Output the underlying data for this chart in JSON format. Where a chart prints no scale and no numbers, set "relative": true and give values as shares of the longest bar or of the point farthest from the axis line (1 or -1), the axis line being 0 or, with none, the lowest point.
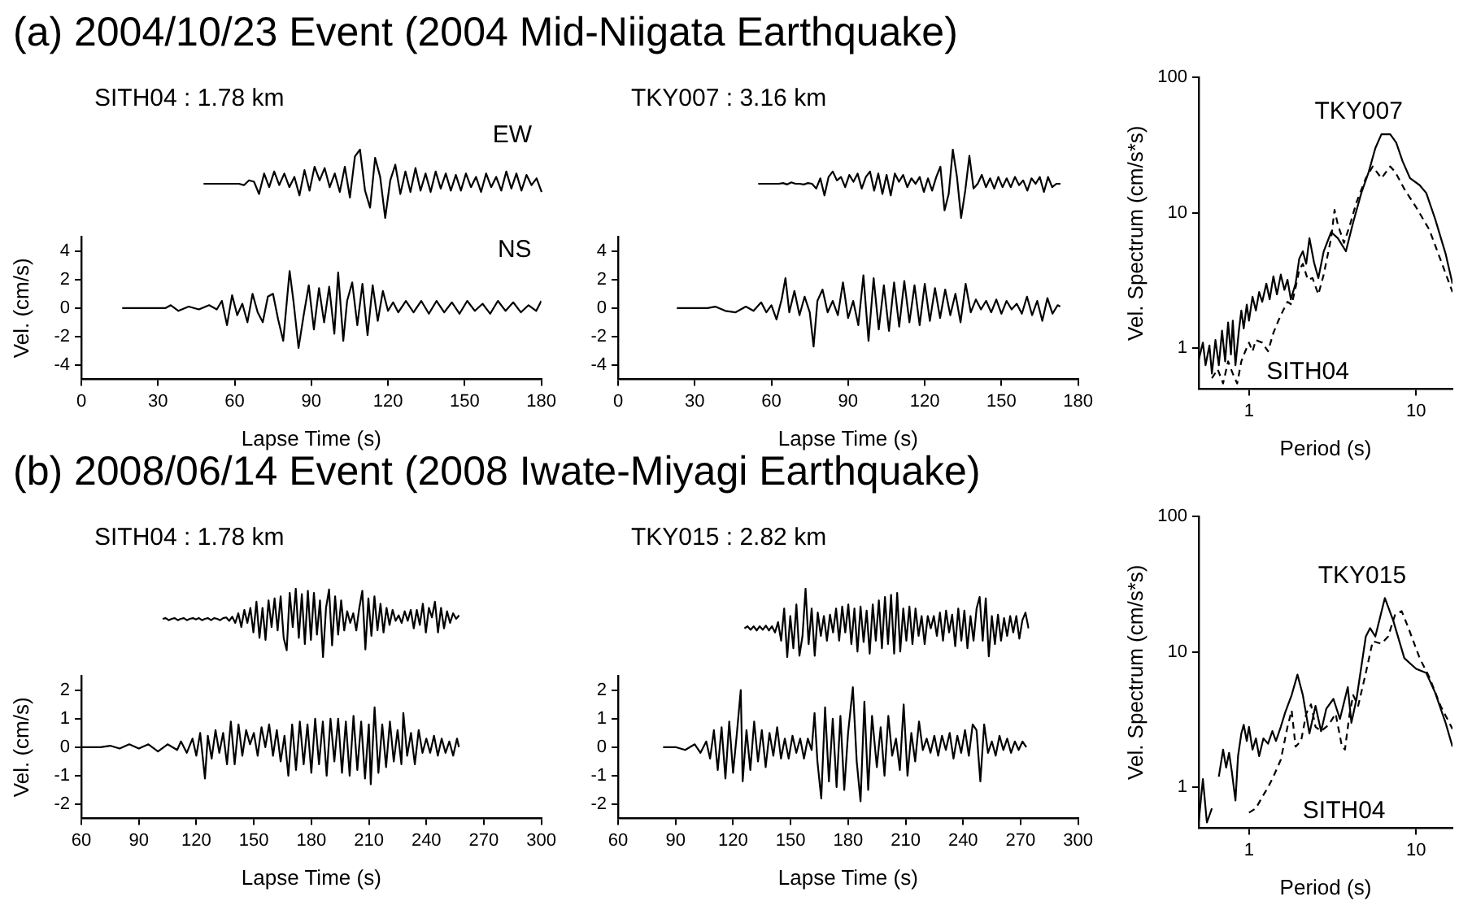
{
  "chart_data": [
    {
      "type": "line",
      "title": "(a) 2004/10/23 Event (2004 Mid-Niigata Earthquake)",
      "subtitle": "SITH04 : 1.78 km",
      "relative": true,
      "categories": [
        null,
        null,
        null,
        null,
        null,
        null,
        null,
        null,
        null,
        null,
        null,
        null,
        null,
        null,
        null,
        null,
        null,
        null,
        null,
        null,
        null,
        null,
        null,
        null,
        null,
        null,
        null,
        null,
        null,
        null,
        null,
        null,
        null,
        null,
        null,
        null,
        null,
        null,
        null,
        null,
        null,
        null,
        null,
        null,
        null,
        null,
        null,
        null,
        null,
        null,
        null,
        null,
        null,
        null,
        null,
        null,
        null,
        null,
        null,
        null,
        null,
        null,
        null,
        null,
        null,
        null,
        null,
        null
      ],
      "series": [
        {
          "name": "EW",
          "color": "#000000",
          "values": [
            0.5,
            0.5,
            0.5,
            0.5,
            0.5,
            0.5,
            0.5,
            0.5,
            0.48,
            0.55,
            0.53,
            0.35,
            0.65,
            0.45,
            0.68,
            0.48,
            0.65,
            0.45,
            0.6,
            0.33,
            0.7,
            0.4,
            0.75,
            0.55,
            0.73,
            0.45,
            0.65,
            0.38,
            0.75,
            0.3,
            0.9,
            1,
            0.4,
            0.15,
            0.88,
            0.6,
            0,
            0.55,
            0.78,
            0.35,
            0.68,
            0.38,
            0.73,
            0.4,
            0.65,
            0.38,
            0.68,
            0.43,
            0.65,
            0.4,
            0.63,
            0.4,
            0.65,
            0.45,
            0.6,
            0.38,
            0.65,
            0.45,
            0.6,
            0.4,
            0.68,
            0.43,
            0.65,
            0.4,
            0.63,
            0.48,
            0.58,
            0.38
          ]
        }
      ]
    },
    {
      "type": "line",
      "xlabel": "Lapse Time (s)",
      "ylabel": "Vel. (cm/s)",
      "xlim": [
        0,
        180
      ],
      "xticks": [
        0,
        30,
        60,
        90,
        120,
        150,
        180
      ],
      "ylim": [
        -5,
        5
      ],
      "yticks": [
        -4,
        -2,
        0,
        2,
        4
      ],
      "x": [
        16,
        33,
        35,
        38,
        42,
        46,
        50,
        53,
        55,
        57,
        59,
        61,
        63,
        65,
        67,
        69,
        71,
        73,
        75,
        77,
        79,
        81.5,
        83,
        85,
        87,
        89,
        91,
        93,
        95,
        97,
        99,
        100.5,
        102.5,
        104,
        106,
        108,
        110,
        112,
        114,
        116,
        118,
        120,
        122,
        124,
        127,
        130,
        133,
        136,
        139,
        142,
        145,
        148,
        151,
        154,
        157,
        160,
        163,
        166,
        169,
        172,
        175,
        178,
        180
      ],
      "series": [
        {
          "name": "NS",
          "color": "#000000",
          "values": [
            0,
            0,
            0.2,
            -0.2,
            0.1,
            -0.1,
            0.2,
            -0.1,
            0.5,
            -1.2,
            0.9,
            -0.5,
            0.3,
            -1.0,
            1.0,
            -0.3,
            -1.0,
            0.8,
            1.0,
            -0.8,
            -2.3,
            2.6,
            0.5,
            -2.8,
            -0.5,
            1.6,
            -1.5,
            1.4,
            -1.0,
            1.5,
            -1.8,
            2.5,
            -2.3,
            0.5,
            1.8,
            -1.2,
            1.7,
            -1.9,
            1.6,
            -0.9,
            1.2,
            -0.2,
            0.4,
            -0.3,
            0.5,
            -0.3,
            0.5,
            -0.4,
            0.5,
            -0.3,
            0.4,
            -0.4,
            0.5,
            -0.2,
            0.3,
            -0.4,
            0.5,
            -0.2,
            0.4,
            -0.3,
            0.2,
            -0.2,
            0.5
          ]
        }
      ]
    },
    {
      "type": "line",
      "subtitle": "TKY007 : 3.16 km",
      "relative": true,
      "categories": [
        null,
        null,
        null,
        null,
        null,
        null,
        null,
        null,
        null,
        null,
        null,
        null,
        null,
        null,
        null,
        null,
        null,
        null,
        null,
        null,
        null,
        null,
        null,
        null,
        null,
        null,
        null,
        null,
        null,
        null,
        null,
        null,
        null,
        null,
        null,
        null,
        null,
        null,
        null,
        null,
        null,
        null,
        null,
        null,
        null,
        null,
        null,
        null,
        null,
        null,
        null,
        null,
        null,
        null,
        null,
        null,
        null,
        null,
        null,
        null,
        null,
        null,
        null,
        null,
        null,
        null,
        null,
        null,
        null,
        null,
        null,
        null,
        null,
        null
      ],
      "series": [
        {
          "color": "#000000",
          "values": [
            0.5,
            0.5,
            0.5,
            0.5,
            0.5,
            0.5,
            0.51,
            0.49,
            0.52,
            0.5,
            0.5,
            0.49,
            0.51,
            0.5,
            0.43,
            0.58,
            0.33,
            0.6,
            0.68,
            0.55,
            0.6,
            0.45,
            0.63,
            0.53,
            0.65,
            0.43,
            0.6,
            0.68,
            0.4,
            0.65,
            0.35,
            0.63,
            0.33,
            0.65,
            0.53,
            0.63,
            0.45,
            0.58,
            0.5,
            0.6,
            0.38,
            0.58,
            0.4,
            0.6,
            0.75,
            0.11,
            0.35,
            1,
            0.6,
            0,
            0.4,
            0.91,
            0.43,
            0.5,
            0.63,
            0.45,
            0.58,
            0.43,
            0.6,
            0.45,
            0.58,
            0.45,
            0.6,
            0.48,
            0.55,
            0.4,
            0.58,
            0.5,
            0.6,
            0.38,
            0.6,
            0.45,
            0.5,
            0.5
          ]
        }
      ]
    },
    {
      "type": "line",
      "xlabel": "Lapse Time (s)",
      "xlim": [
        0,
        180
      ],
      "xticks": [
        0,
        30,
        60,
        90,
        120,
        150,
        180
      ],
      "ylim": [
        -5,
        5
      ],
      "yticks": [
        -4,
        -2,
        0,
        2,
        4
      ],
      "x": [
        23,
        35,
        38,
        42,
        46,
        50,
        53,
        56,
        58,
        60,
        62,
        64,
        65.5,
        67,
        69,
        71,
        73,
        75,
        76.5,
        78,
        80,
        82,
        84,
        86,
        88,
        90,
        92,
        94,
        96,
        98,
        100,
        102,
        104,
        106,
        108,
        110,
        112,
        114,
        116,
        118,
        120,
        122,
        124,
        126,
        128,
        130,
        132,
        134,
        136,
        138,
        140,
        142,
        144,
        146,
        148,
        150,
        152,
        154,
        156,
        158,
        160,
        162,
        164,
        166,
        168,
        170,
        172,
        173
      ],
      "series": [
        {
          "color": "#000000",
          "values": [
            0,
            0,
            0.1,
            -0.2,
            -0.3,
            0.1,
            -0.2,
            0.4,
            -0.3,
            0.2,
            -0.8,
            0.6,
            2.1,
            -0.3,
            1.2,
            -0.5,
            0.8,
            -0.3,
            -2.7,
            0.5,
            1.3,
            -0.3,
            0.5,
            -0.5,
            1.8,
            -0.7,
            0.5,
            -1.2,
            2.3,
            -2.3,
            2.1,
            -1.5,
            1.6,
            -1.6,
            1.8,
            -1.3,
            1.9,
            -1.0,
            1.6,
            -1.2,
            1.7,
            -0.9,
            1.4,
            -0.7,
            1.3,
            -0.5,
            1.0,
            -1.0,
            1.7,
            -0.3,
            0.6,
            -0.1,
            0.5,
            -0.3,
            0.6,
            -0.4,
            0.5,
            -0.1,
            0.3,
            -0.4,
            0.8,
            -0.5,
            0.5,
            -0.9,
            0.7,
            -0.4,
            0.2,
            0.1
          ]
        }
      ]
    },
    {
      "type": "line",
      "log": "xy",
      "xlabel": "Period (s)",
      "ylabel": "Vel. Spectrum (cm/s*s)",
      "xlim": [
        0.5,
        16.5
      ],
      "xticks": [
        1,
        10
      ],
      "ylim": [
        0.5,
        100
      ],
      "yticks": [
        1,
        10,
        100
      ],
      "series": [
        {
          "name": "TKY007",
          "color": "#000000",
          "line_style": "solid",
          "x": [
            0.5,
            0.53,
            0.55,
            0.58,
            0.6,
            0.63,
            0.66,
            0.69,
            0.72,
            0.75,
            0.78,
            0.8,
            0.83,
            0.87,
            0.9,
            0.93,
            0.97,
            1.0,
            1.05,
            1.1,
            1.15,
            1.2,
            1.27,
            1.33,
            1.4,
            1.47,
            1.55,
            1.63,
            1.7,
            1.78,
            1.9,
            2.0,
            2.1,
            2.2,
            2.3,
            2.45,
            2.6,
            2.8,
            3.1,
            3.4,
            3.8,
            4.2,
            4.7,
            5.2,
            5.7,
            6.2,
            7.0,
            7.6,
            8.3,
            9.2,
            10.5,
            11.5,
            13,
            15,
            16.5
          ],
          "values": [
            0.82,
            1.1,
            0.75,
            1.05,
            0.65,
            1.15,
            0.75,
            1.35,
            0.8,
            1.55,
            0.9,
            1.6,
            0.75,
            1.35,
            1.9,
            1.4,
            2.1,
            1.6,
            2.4,
            1.9,
            2.6,
            2.2,
            3.0,
            2.3,
            3.4,
            2.5,
            3.5,
            2.7,
            3.2,
            2.3,
            3.0,
            4.6,
            5.2,
            4.2,
            6.5,
            4.3,
            3.3,
            5.2,
            7.2,
            6.5,
            5.2,
            8.5,
            14,
            20,
            30,
            38,
            38,
            33,
            24,
            18,
            16,
            14,
            9,
            5,
            3
          ]
        },
        {
          "name": "SITH04",
          "color": "#000000",
          "line_style": "dashed",
          "x": [
            0.6,
            0.65,
            0.7,
            0.75,
            0.8,
            0.85,
            0.9,
            0.95,
            1.0,
            1.05,
            1.1,
            1.2,
            1.3,
            1.4,
            1.5,
            1.6,
            1.7,
            1.8,
            1.9,
            2.0,
            2.1,
            2.25,
            2.4,
            2.6,
            2.8,
            3.1,
            3.25,
            3.4,
            3.7,
            4.0,
            4.4,
            5.0,
            5.5,
            6.2,
            7.0,
            7.5,
            8.5,
            10,
            12,
            14,
            16.5
          ],
          "values": [
            0.6,
            0.7,
            0.55,
            0.8,
            0.65,
            0.55,
            0.8,
            0.95,
            1.1,
            0.95,
            1.15,
            1.1,
            0.95,
            1.3,
            1.6,
            1.9,
            2.2,
            2.1,
            2.8,
            3.8,
            4.2,
            3.2,
            3.3,
            2.5,
            3.5,
            6.5,
            10.5,
            8.2,
            6.0,
            8.0,
            12,
            18,
            22,
            18,
            22,
            20,
            15,
            11,
            7.5,
            4.5,
            2.6
          ]
        }
      ]
    },
    {
      "type": "line",
      "title": "(b) 2008/06/14 Event (2008 Iwate-Miyagi Earthquake)",
      "subtitle": "SITH04 : 1.78 km",
      "relative": true,
      "categories": [
        null,
        null,
        null,
        null,
        null,
        null,
        null,
        null,
        null,
        null,
        null,
        null,
        null,
        null,
        null,
        null,
        null,
        null,
        null,
        null,
        null,
        null,
        null,
        null,
        null,
        null,
        null,
        null,
        null,
        null,
        null,
        null,
        null,
        null,
        null,
        null,
        null,
        null,
        null,
        null,
        null,
        null,
        null,
        null,
        null,
        null,
        null,
        null,
        null,
        null,
        null,
        null,
        null,
        null,
        null,
        null,
        null,
        null,
        null,
        null,
        null,
        null,
        null,
        null,
        null,
        null,
        null,
        null,
        null,
        null,
        null,
        null,
        null,
        null,
        null,
        null,
        null,
        null,
        null,
        null,
        null,
        null,
        null,
        null,
        null,
        null,
        null,
        null,
        null,
        null,
        null,
        null,
        null,
        null,
        null,
        null,
        null,
        null,
        null
      ],
      "series": [
        {
          "color": "#000000",
          "values": [
            0.56,
            0.57,
            0.54,
            0.56,
            0.57,
            0.54,
            0.56,
            0.57,
            0.54,
            0.56,
            0.57,
            0.55,
            0.57,
            0.54,
            0.56,
            0.57,
            0.54,
            0.57,
            0.56,
            0.54,
            0.57,
            0.58,
            0.53,
            0.59,
            0.5,
            0.64,
            0.44,
            0.69,
            0.5,
            0.72,
            0.36,
            0.81,
            0.28,
            0.72,
            0.25,
            0.83,
            0.44,
            0.86,
            0.39,
            0.89,
            0.28,
            0.1,
            0.94,
            0.44,
            1,
            0.28,
            0.92,
            0.19,
            0.97,
            0.25,
            0.94,
            0.33,
            0.83,
            0,
            0.72,
            0.99,
            0.17,
            0.89,
            0.33,
            0.83,
            0.39,
            0.67,
            0.5,
            0.64,
            0.39,
            0.72,
            0.97,
            0.11,
            0.86,
            0.31,
            0.89,
            0.39,
            0.78,
            0.36,
            0.72,
            0.47,
            0.69,
            0.53,
            0.61,
            0.5,
            0.67,
            0.53,
            0.69,
            0.42,
            0.69,
            0.47,
            0.78,
            0.36,
            0.72,
            0.58,
            0.81,
            0.36,
            0.72,
            0.42,
            0.67,
            0.5,
            0.64,
            0.56,
            0.61
          ]
        }
      ]
    },
    {
      "type": "line",
      "xlabel": "Lapse Time (s)",
      "ylabel": "Vel. (cm/s)",
      "xlim": [
        60,
        300
      ],
      "xticks": [
        60,
        90,
        120,
        150,
        180,
        210,
        240,
        270,
        300
      ],
      "ylim": [
        -2.5,
        2.5
      ],
      "yticks": [
        -2,
        -1,
        0,
        1,
        2
      ],
      "x": [
        60,
        70,
        75,
        80,
        85,
        90,
        95,
        100,
        105,
        110,
        112,
        115,
        118,
        120,
        122,
        124.5,
        126,
        128,
        130,
        132,
        134,
        136,
        138,
        140,
        142,
        144,
        146,
        148,
        150,
        152,
        154,
        156,
        158,
        160,
        162,
        164,
        166,
        168,
        170,
        172,
        174,
        176,
        178,
        180,
        182,
        184,
        186,
        188,
        190,
        192,
        194,
        196,
        198,
        200,
        202,
        204,
        206,
        208,
        210,
        211,
        213,
        215,
        217,
        219,
        221,
        223,
        225,
        227,
        228,
        230,
        232,
        234,
        236,
        238,
        240,
        242,
        244,
        246,
        248,
        250,
        252,
        254,
        256,
        257
      ],
      "series": [
        {
          "color": "#000000",
          "values": [
            0,
            0,
            0.05,
            -0.05,
            0.1,
            -0.05,
            0.1,
            -0.15,
            0.1,
            -0.1,
            0.2,
            -0.2,
            0.3,
            -0.3,
            0.5,
            -1.1,
            0.4,
            -0.4,
            0.6,
            -0.2,
            0.5,
            -0.6,
            0.9,
            -0.6,
            0.8,
            -0.3,
            0.6,
            0.1,
            0.5,
            -0.3,
            0.7,
            0,
            0.8,
            -0.3,
            0.6,
            -0.5,
            0.4,
            -1.0,
            0.8,
            -0.8,
            0.9,
            -0.6,
            0.8,
            -0.9,
            1.0,
            -0.6,
            0.9,
            -1.0,
            1.0,
            -0.5,
            1.0,
            -0.9,
            0.9,
            -1.0,
            1.1,
            -0.8,
            0.9,
            -1.1,
            0.8,
            -1.3,
            1.4,
            -0.9,
            0.8,
            -0.7,
            0.9,
            -0.5,
            0.6,
            -0.6,
            1.2,
            -0.3,
            0.5,
            -0.6,
            0.6,
            -0.2,
            0.3,
            -0.2,
            0.4,
            -0.3,
            0.3,
            -0.2,
            0.2,
            -0.3,
            0.3,
            0
          ]
        }
      ]
    },
    {
      "type": "line",
      "subtitle": "TKY015 : 2.82 km",
      "relative": true,
      "categories": [
        null,
        null,
        null,
        null,
        null,
        null,
        null,
        null,
        null,
        null,
        null,
        null,
        null,
        null,
        null,
        null,
        null,
        null,
        null,
        null,
        null,
        null,
        null,
        null,
        null,
        null,
        null,
        null,
        null,
        null,
        null,
        null,
        null,
        null,
        null,
        null,
        null,
        null,
        null,
        null,
        null,
        null,
        null,
        null,
        null,
        null,
        null,
        null,
        null,
        null,
        null,
        null,
        null,
        null,
        null,
        null,
        null,
        null,
        null,
        null,
        null,
        null,
        null,
        null,
        null,
        null,
        null,
        null,
        null,
        null,
        null,
        null,
        null,
        null,
        null,
        null,
        null,
        null,
        null,
        null,
        null,
        null,
        null,
        null,
        null,
        null,
        null,
        null,
        null,
        null,
        null,
        null,
        null,
        null
      ],
      "series": [
        {
          "color": "#000000",
          "values": [
            0.42,
            0.45,
            0.4,
            0.45,
            0.39,
            0.45,
            0.4,
            0.46,
            0.39,
            0.45,
            0.36,
            0.51,
            0.24,
            0.71,
            0,
            0.6,
            0.13,
            0.77,
            0.02,
            0.31,
            1,
            0.19,
            0.71,
            0.02,
            0.65,
            0.31,
            0.6,
            0.24,
            0.62,
            0.36,
            0.71,
            0.24,
            0.74,
            0.36,
            0.77,
            0.19,
            0.71,
            0.08,
            0.74,
            0.22,
            0.68,
            0.05,
            0.77,
            0.24,
            0.83,
            0.13,
            0.88,
            0.19,
            0.91,
            0.05,
            0.94,
            0.08,
            0.71,
            0.24,
            0.74,
            0.19,
            0.71,
            0.31,
            0.6,
            0.19,
            0.6,
            0.42,
            0.6,
            0.31,
            0.65,
            0.24,
            0.68,
            0.36,
            0.62,
            0.16,
            0.71,
            0.24,
            0.68,
            0.13,
            0.6,
            0.24,
            0.71,
            0.88,
            0.24,
            0.86,
            0.01,
            0.6,
            0.19,
            0.62,
            0.24,
            0.57,
            0.31,
            0.6,
            0.36,
            0.6,
            0.27,
            0.54,
            0.65,
            0.42
          ]
        }
      ]
    },
    {
      "type": "line",
      "xlabel": "Lapse Time (s)",
      "xlim": [
        60,
        300
      ],
      "xticks": [
        60,
        90,
        120,
        150,
        180,
        210,
        240,
        270,
        300
      ],
      "ylim": [
        -2.5,
        2.5
      ],
      "yticks": [
        -2,
        -1,
        0,
        1,
        2
      ],
      "x": [
        83.5,
        90,
        95,
        100,
        103,
        106,
        108,
        110,
        112,
        114,
        116,
        118,
        120,
        122,
        124,
        125,
        127,
        129,
        131,
        133,
        135,
        137,
        139,
        141,
        143,
        145,
        147,
        149,
        151,
        153,
        155,
        157,
        159,
        161,
        162.5,
        164,
        166,
        168,
        170,
        172,
        174,
        176,
        178,
        180,
        182.5,
        184.5,
        186.5,
        188.5,
        190.5,
        192.5,
        195,
        197,
        199,
        201,
        203,
        205,
        207,
        209,
        211,
        213,
        215,
        217,
        219,
        221,
        223,
        225,
        227,
        229,
        231,
        233,
        235,
        237,
        239,
        241,
        243,
        245,
        247,
        249,
        251,
        253,
        255,
        257,
        259,
        261,
        263,
        265,
        267,
        269,
        271,
        273
      ],
      "series": [
        {
          "color": "#000000",
          "values": [
            0,
            0,
            -0.1,
            0.1,
            -0.2,
            0.2,
            -0.4,
            0.6,
            -0.8,
            0.7,
            -1.1,
            0.9,
            -0.9,
            0.5,
            2.0,
            -1.2,
            0.6,
            -0.8,
            0.9,
            -0.5,
            0.6,
            -0.7,
            0.5,
            -0.3,
            0.7,
            -0.4,
            0.3,
            -0.4,
            0.4,
            -0.2,
            0.3,
            -0.4,
            0.3,
            -0.1,
            1.2,
            -0.5,
            -1.8,
            1.4,
            -1.2,
            1.0,
            -1.4,
            1.1,
            -1.5,
            0.5,
            2.1,
            -0.5,
            -1.9,
            1.6,
            -1.5,
            1.1,
            -0.7,
            0.7,
            -1.0,
            1.1,
            -0.3,
            0.3,
            -0.8,
            1.5,
            -1.0,
            0.5,
            -0.5,
            0.9,
            -0.1,
            0.3,
            -0.2,
            0.4,
            -0.3,
            0.4,
            -0.1,
            0.5,
            -0.4,
            0.4,
            -0.2,
            0.6,
            -0.3,
            0.8,
            0.6,
            -1.2,
            0.8,
            -0.2,
            0.2,
            -0.3,
            0.4,
            -0.1,
            0.3,
            -0.2,
            0.2,
            -0.1,
            0.2,
            0
          ]
        }
      ]
    },
    {
      "type": "line",
      "log": "xy",
      "xlabel": "Period (s)",
      "ylabel": "Vel. Spectrum (cm/s*s)",
      "xlim": [
        0.5,
        16.5
      ],
      "xticks": [
        1,
        10
      ],
      "ylim": [
        0.5,
        100
      ],
      "yticks": [
        1,
        10,
        100
      ],
      "series": [
        {
          "name": "TKY015",
          "color": "#000000",
          "line_style": "solid",
          "x": [
            0.5,
            0.53,
            0.56,
            0.6,
            0.63,
            0.66,
            0.7,
            0.73,
            0.76,
            0.79,
            0.83,
            0.86,
            0.9,
            0.93,
            0.97,
            1.0,
            1.05,
            1.1,
            1.15,
            1.22,
            1.3,
            1.38,
            1.45,
            1.55,
            1.65,
            1.8,
            1.95,
            2.1,
            2.3,
            2.5,
            2.7,
            2.9,
            3.2,
            3.5,
            3.9,
            4.1,
            4.4,
            5.0,
            5.3,
            5.7,
            6.5,
            7.3,
            8.5,
            10,
            11.5,
            13,
            15,
            16.5
          ],
          "values": [
            0.55,
            1.15,
            0.55,
            0.7,
            null,
            1.2,
            1.9,
            1.4,
            1.8,
            1.3,
            0.8,
            1.7,
            2.5,
            2.9,
            2.2,
            2.8,
            1.9,
            2.3,
            1.7,
            2.3,
            2.1,
            2.6,
            2.2,
            2.8,
            3.6,
            4.8,
            6.8,
            4.8,
            2.5,
            4.0,
            2.6,
            3.8,
            4.5,
            3.2,
            5.5,
            3.0,
            4.5,
            13,
            15,
            13,
            25,
            17,
            9,
            7.5,
            7,
            5,
            3,
            2
          ]
        },
        {
          "name": "SITH04",
          "color": "#000000",
          "line_style": "dashed",
          "x": [
            1.0,
            1.1,
            1.2,
            1.3,
            1.4,
            1.55,
            1.7,
            1.8,
            1.9,
            2.05,
            2.2,
            2.35,
            2.5,
            2.7,
            3.0,
            3.3,
            3.6,
            3.75,
            4.0,
            4.2,
            4.5,
            5.0,
            5.5,
            6.2,
            6.8,
            7.5,
            8.2,
            9,
            10.5,
            12,
            14,
            16.5
          ],
          "values": [
            0.65,
            0.7,
            0.85,
            1.0,
            1.2,
            1.6,
            2.8,
            3.7,
            2.0,
            2.2,
            3.5,
            4.1,
            2.8,
            2.6,
            2.9,
            3.5,
            2.0,
            1.9,
            3.5,
            4.8,
            4.0,
            7,
            12,
            11.5,
            13,
            19,
            20,
            15,
            9,
            6.5,
            4,
            2.7
          ]
        }
      ]
    }
  ]
}
